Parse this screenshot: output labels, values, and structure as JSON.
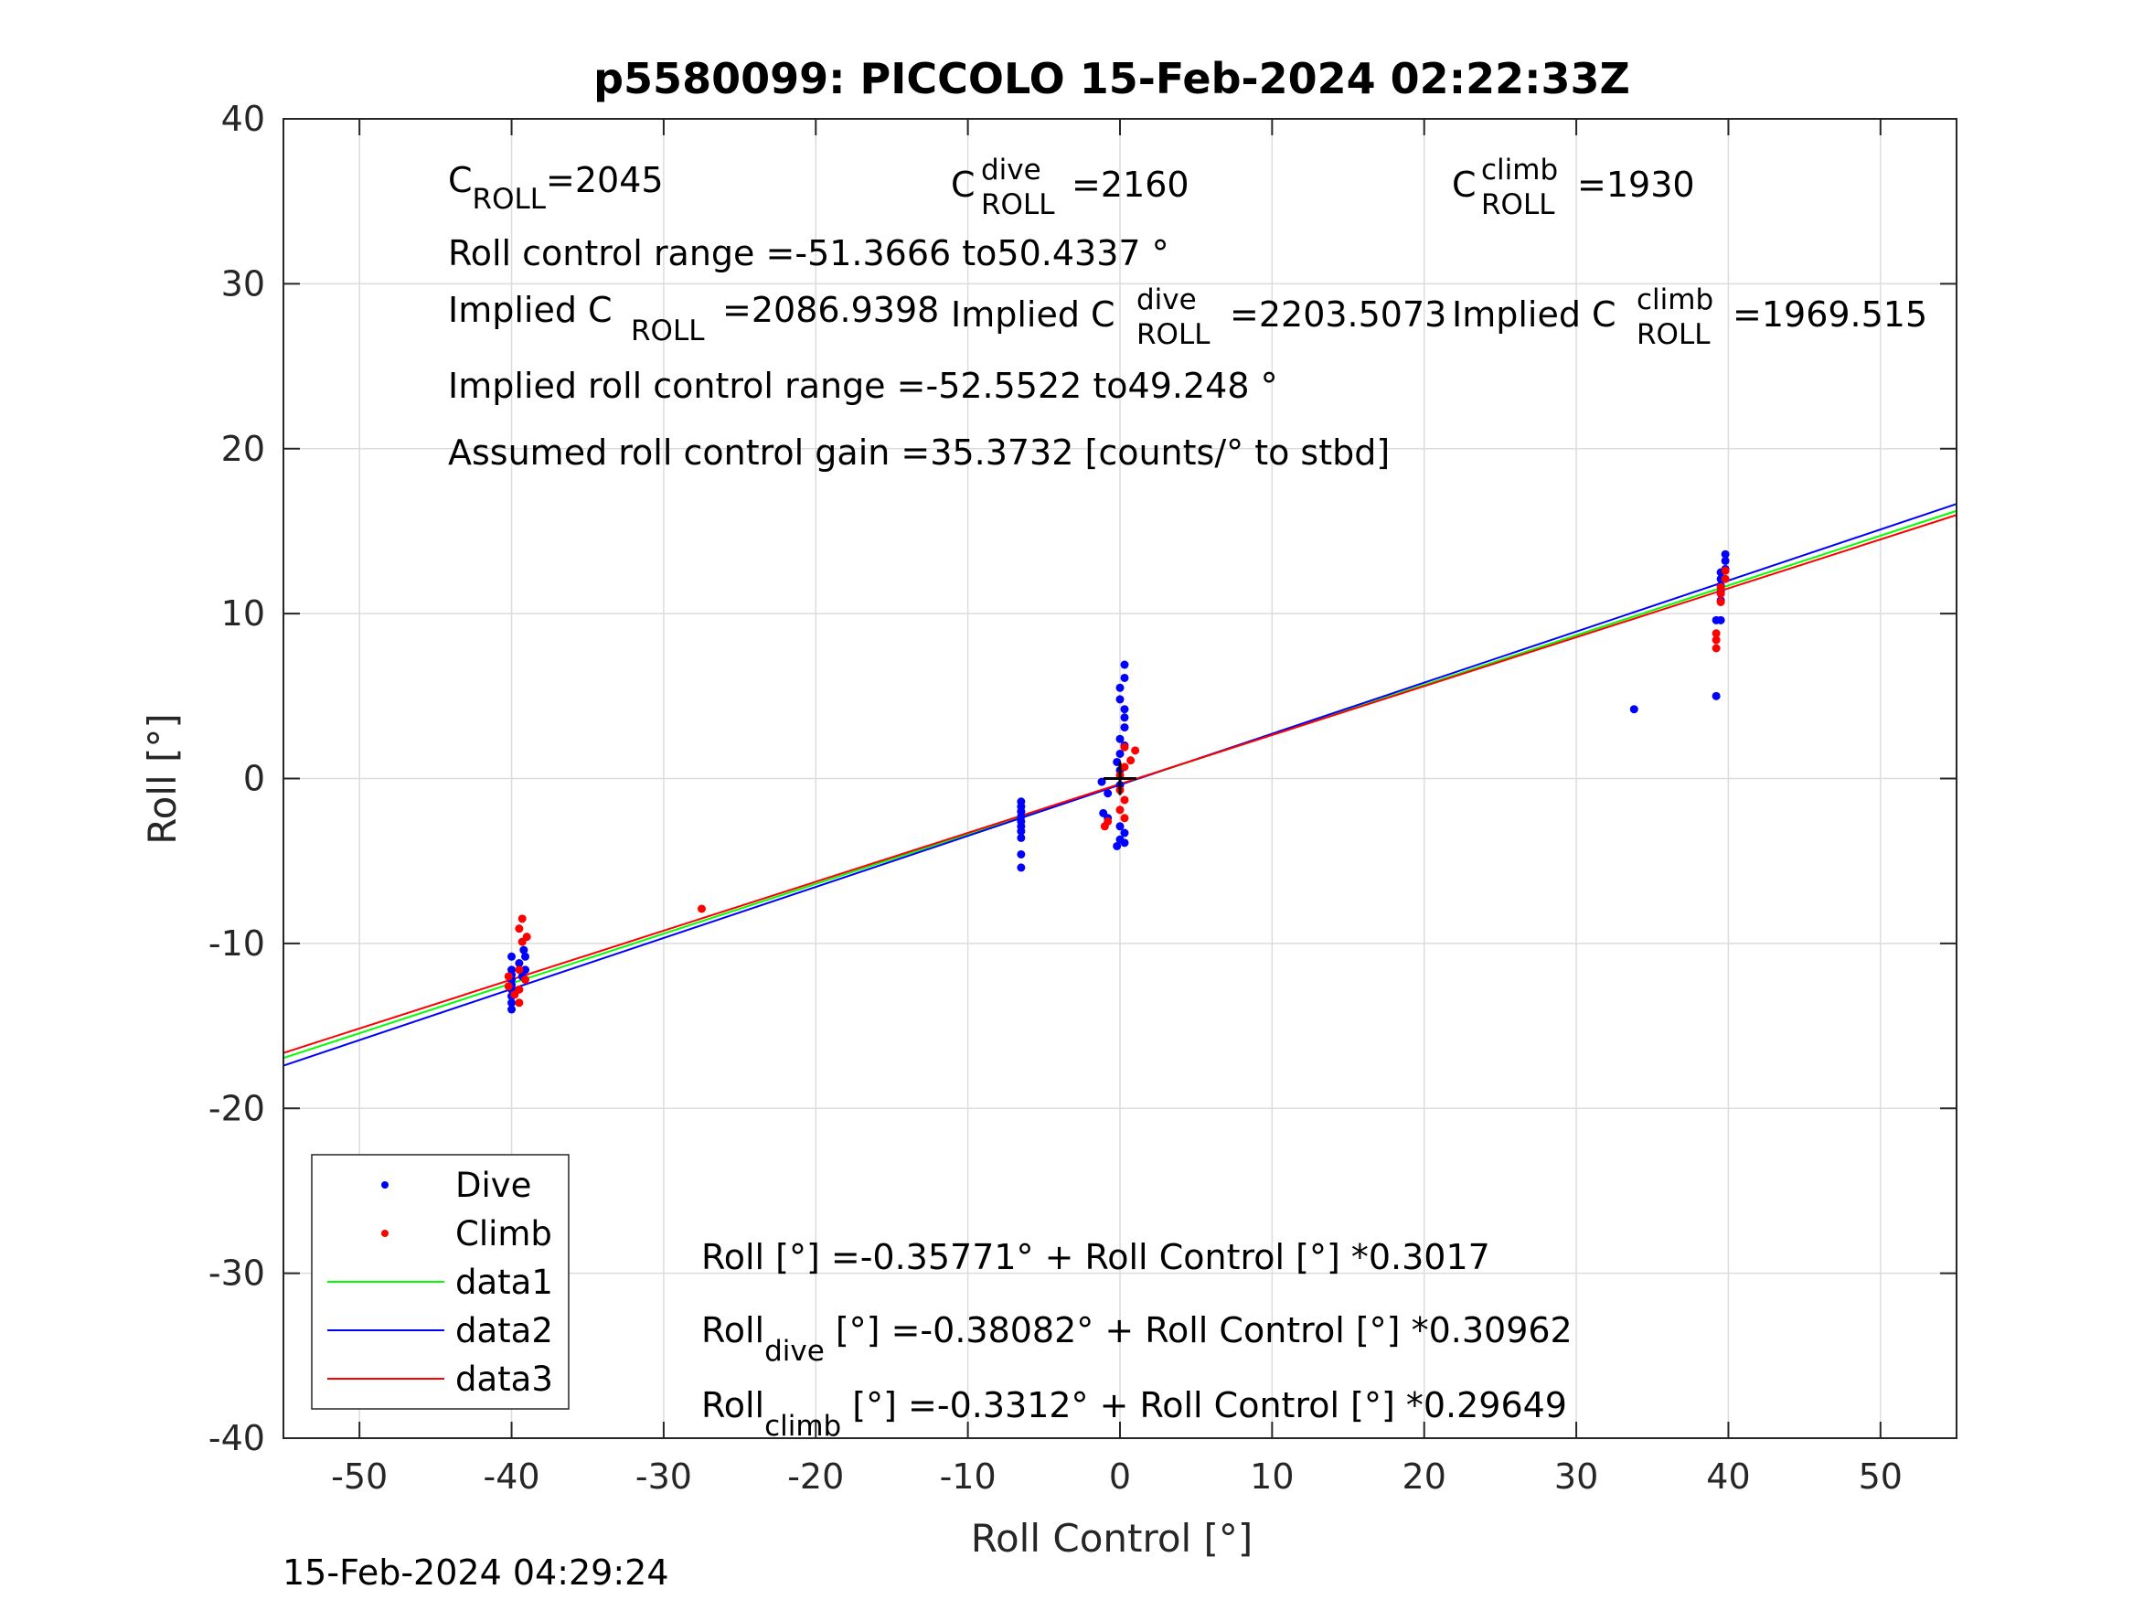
{
  "chart_data": {
    "type": "scatter",
    "title": "p5580099: PICCOLO 15-Feb-2024 02:22:33Z",
    "xlabel": "Roll Control [°]",
    "ylabel": "Roll [°]",
    "xlim": [
      -55,
      55
    ],
    "ylim": [
      -40,
      40
    ],
    "xticks": [
      "-50",
      "-40",
      "-30",
      "-20",
      "-10",
      "0",
      "10",
      "20",
      "30",
      "40",
      "50"
    ],
    "yticks": [
      "-40",
      "-30",
      "-20",
      "-10",
      "0",
      "10",
      "20",
      "30",
      "40"
    ],
    "grid": true,
    "legend_position": "bottom-left",
    "legend": [
      "Dive",
      "Climb",
      "data1",
      "data2",
      "data3"
    ],
    "colors": {
      "dive": "#0000ff",
      "climb": "#ff0000",
      "data1": "#00ff00",
      "data2": "#0000ff",
      "data3": "#ff0000"
    },
    "series": [
      {
        "name": "Dive",
        "kind": "scatter",
        "points": [
          [
            -40,
            -14.0
          ],
          [
            -40,
            -13.6
          ],
          [
            -40,
            -13.2
          ],
          [
            -40,
            -12.8
          ],
          [
            -40,
            -12.5
          ],
          [
            -40,
            -12.2
          ],
          [
            -40,
            -11.9
          ],
          [
            -40,
            -11.6
          ],
          [
            -40,
            -10.8
          ],
          [
            -39.5,
            -11.2
          ],
          [
            -39.2,
            -10.4
          ],
          [
            -39.1,
            -10.8
          ],
          [
            -39.3,
            -12.0
          ],
          [
            -39.1,
            -11.6
          ],
          [
            -6.5,
            -1.4
          ],
          [
            -6.5,
            -1.7
          ],
          [
            -6.5,
            -2.0
          ],
          [
            -6.5,
            -2.3
          ],
          [
            -6.5,
            -2.6
          ],
          [
            -6.5,
            -2.9
          ],
          [
            -6.5,
            -3.2
          ],
          [
            -6.5,
            -3.6
          ],
          [
            -6.5,
            -4.6
          ],
          [
            -6.5,
            -5.4
          ],
          [
            0.3,
            6.9
          ],
          [
            0.3,
            6.1
          ],
          [
            0.0,
            5.5
          ],
          [
            0.0,
            4.8
          ],
          [
            0.3,
            4.2
          ],
          [
            0.3,
            3.7
          ],
          [
            0.3,
            3.1
          ],
          [
            0.0,
            2.4
          ],
          [
            0.3,
            2.0
          ],
          [
            0.0,
            1.5
          ],
          [
            -0.2,
            1.0
          ],
          [
            0.0,
            0.5
          ],
          [
            -1.2,
            -0.2
          ],
          [
            0.0,
            -0.4
          ],
          [
            -0.8,
            -0.9
          ],
          [
            -1.1,
            -2.1
          ],
          [
            -0.8,
            -2.4
          ],
          [
            0.0,
            -2.9
          ],
          [
            0.3,
            -3.3
          ],
          [
            0.0,
            -3.7
          ],
          [
            -0.2,
            -4.1
          ],
          [
            0.3,
            -3.9
          ],
          [
            33.8,
            4.2
          ],
          [
            39.2,
            5.0
          ],
          [
            39.5,
            9.6
          ],
          [
            39.2,
            9.6
          ],
          [
            39.5,
            10.8
          ],
          [
            39.5,
            11.3
          ],
          [
            39.5,
            11.7
          ],
          [
            39.5,
            12.1
          ],
          [
            39.5,
            12.5
          ],
          [
            39.8,
            12.7
          ],
          [
            39.8,
            13.2
          ],
          [
            39.8,
            13.6
          ]
        ]
      },
      {
        "name": "Climb",
        "kind": "scatter",
        "points": [
          [
            -39.3,
            -8.5
          ],
          [
            -39.5,
            -9.1
          ],
          [
            -39.0,
            -9.6
          ],
          [
            -39.3,
            -9.9
          ],
          [
            -39.5,
            -11.6
          ],
          [
            -39.1,
            -12.2
          ],
          [
            -39.5,
            -12.8
          ],
          [
            -40.2,
            -12.0
          ],
          [
            -40.2,
            -12.6
          ],
          [
            -39.8,
            -13.1
          ],
          [
            -39.5,
            -13.6
          ],
          [
            -27.5,
            -7.9
          ],
          [
            1.0,
            1.7
          ],
          [
            0.7,
            1.1
          ],
          [
            0.3,
            1.9
          ],
          [
            0.3,
            0.7
          ],
          [
            0.0,
            0.2
          ],
          [
            0.0,
            -0.7
          ],
          [
            0.3,
            -1.3
          ],
          [
            0.0,
            -1.9
          ],
          [
            0.3,
            -2.4
          ],
          [
            -0.8,
            -2.6
          ],
          [
            -1.0,
            -2.9
          ],
          [
            39.2,
            7.9
          ],
          [
            39.2,
            8.4
          ],
          [
            39.2,
            8.8
          ],
          [
            39.5,
            10.7
          ],
          [
            39.5,
            11.2
          ],
          [
            39.5,
            11.6
          ],
          [
            39.8,
            12.1
          ],
          [
            39.8,
            12.6
          ]
        ]
      },
      {
        "name": "data1",
        "kind": "line",
        "x": [
          -55,
          55
        ],
        "y": [
          -16.95,
          16.23
        ]
      },
      {
        "name": "data2",
        "kind": "line",
        "x": [
          -55,
          55
        ],
        "y": [
          -17.41,
          16.65
        ]
      },
      {
        "name": "data3",
        "kind": "line",
        "x": [
          -55,
          55
        ],
        "y": [
          -16.64,
          15.98
        ]
      }
    ],
    "marker": {
      "x": 0,
      "y": 0
    }
  },
  "annotations": {
    "c_roll": {
      "base": "C",
      "sub": "ROLL",
      "value": "=2045"
    },
    "c_dive": {
      "base": "C",
      "sup": "dive",
      "sub": "ROLL",
      "value": "=2160"
    },
    "c_climb": {
      "base": "C",
      "sup": "climb",
      "sub": "ROLL",
      "value": "=1930"
    },
    "roll_range": "Roll control range =-51.3666 to50.4337 °",
    "implied_c": {
      "prefix": "Implied C",
      "sub": "ROLL",
      "value": "=2086.9398"
    },
    "implied_dive": {
      "prefix": "Implied C",
      "sup": "dive",
      "sub": "ROLL",
      "value": "=2203.5073"
    },
    "implied_climb": {
      "prefix": "Implied C",
      "sup": "climb",
      "sub": "ROLL",
      "value": "=1969.515"
    },
    "implied_range": "Implied roll control range =-52.5522 to49.248 °",
    "gain": "Assumed roll control gain =35.3732 [counts/° to stbd]",
    "fit_all": "Roll [°] =-0.35771° + Roll Control [°] *0.3017",
    "fit_dive": {
      "base": "Roll",
      "sub": "dive",
      "rest": " [°] =-0.38082° + Roll Control [°] *0.30962"
    },
    "fit_climb": {
      "base": "Roll",
      "sub": "climb",
      "rest": " [°] =-0.3312° + Roll Control [°] *0.29649"
    }
  },
  "timestamp": "15-Feb-2024 04:29:24"
}
